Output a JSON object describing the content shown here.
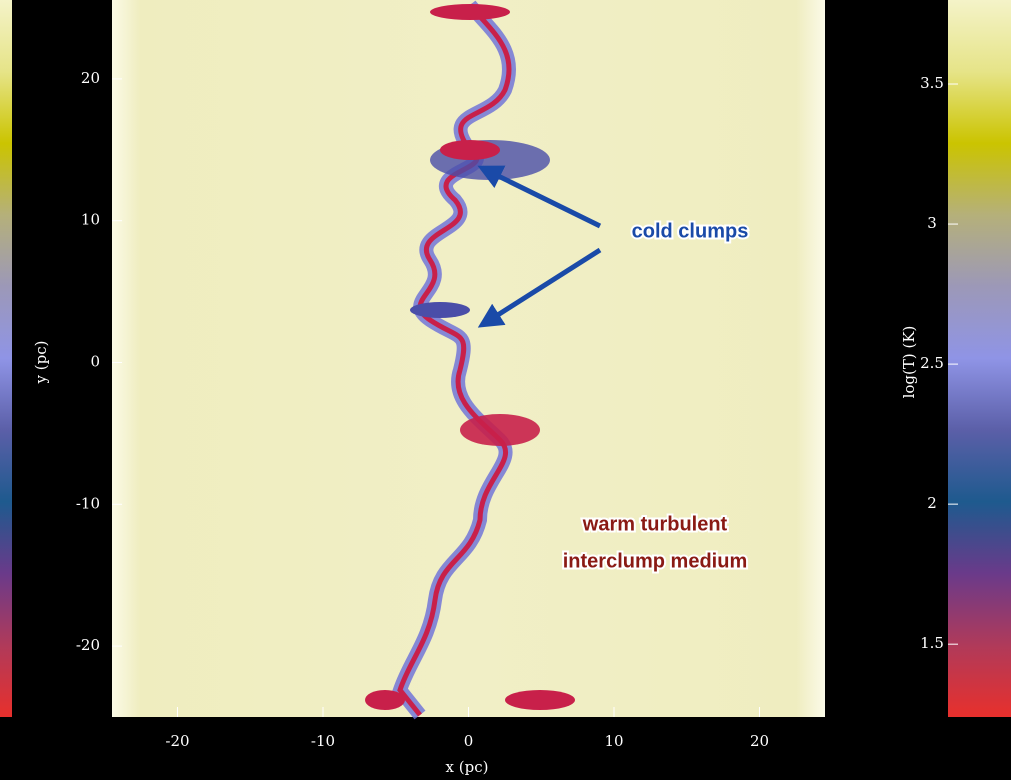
{
  "chart_data": {
    "type": "image",
    "xlabel": "x (pc)",
    "ylabel": "y (pc)",
    "colorbar_label": "log(T) (K)",
    "xlim": [
      -24.5,
      24.5
    ],
    "xticks": [
      -20,
      -10,
      0,
      10,
      20
    ],
    "ylim": [
      -25,
      25
    ],
    "yticks": [
      -20,
      -10,
      0,
      10,
      20
    ],
    "clim": [
      1.24,
      3.8
    ],
    "cticks": [
      1.5,
      2.0,
      2.5,
      3.0,
      3.5
    ],
    "colormap": [
      "#e8302c",
      "#b03a5a",
      "#6a3a8a",
      "#1e5a8e",
      "#5b5fa8",
      "#8f94e6",
      "#9c98b8",
      "#b5b07a",
      "#cbc400",
      "#e6e488",
      "#f4f3c8"
    ],
    "annotations": [
      {
        "text": "cold clumps",
        "color": "#1a4aa8"
      },
      {
        "text": "warm turbulent",
        "color": "#8a1a14"
      },
      {
        "text": "interclump medium",
        "color": "#8a1a14"
      }
    ]
  }
}
